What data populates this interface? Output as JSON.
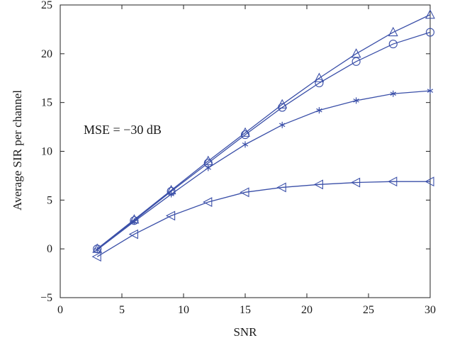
{
  "chart_data": {
    "type": "line",
    "title": "",
    "xlabel": "SNR",
    "ylabel": "Average SIR per channel",
    "xlim": [
      0,
      30
    ],
    "ylim": [
      -5,
      25
    ],
    "xticks": [
      0,
      5,
      10,
      15,
      20,
      25,
      30
    ],
    "yticks": [
      -5,
      0,
      5,
      10,
      15,
      20,
      25
    ],
    "xtick_labels": [
      "0",
      "5",
      "10",
      "15",
      "20",
      "25",
      "30"
    ],
    "ytick_labels": [
      "−5",
      "0",
      "5",
      "10",
      "15",
      "20",
      "25"
    ],
    "grid": false,
    "annotation": "MSE = −30 dB",
    "line_color": "#3a4fa8",
    "x": [
      3,
      6,
      9,
      12,
      15,
      18,
      21,
      24,
      27,
      30
    ],
    "series": [
      {
        "marker": "triangle-up",
        "values": [
          0.0,
          3.0,
          6.0,
          9.0,
          11.9,
          14.8,
          17.5,
          20.0,
          22.2,
          24.0
        ]
      },
      {
        "marker": "circle",
        "values": [
          0.0,
          2.9,
          5.9,
          8.8,
          11.7,
          14.5,
          17.0,
          19.2,
          21.0,
          22.2
        ]
      },
      {
        "marker": "asterisk",
        "values": [
          -0.1,
          2.8,
          5.6,
          8.3,
          10.7,
          12.7,
          14.2,
          15.2,
          15.9,
          16.2
        ]
      },
      {
        "marker": "triangle-left",
        "values": [
          -0.8,
          1.5,
          3.4,
          4.8,
          5.8,
          6.3,
          6.6,
          6.8,
          6.9,
          6.9
        ]
      }
    ]
  }
}
